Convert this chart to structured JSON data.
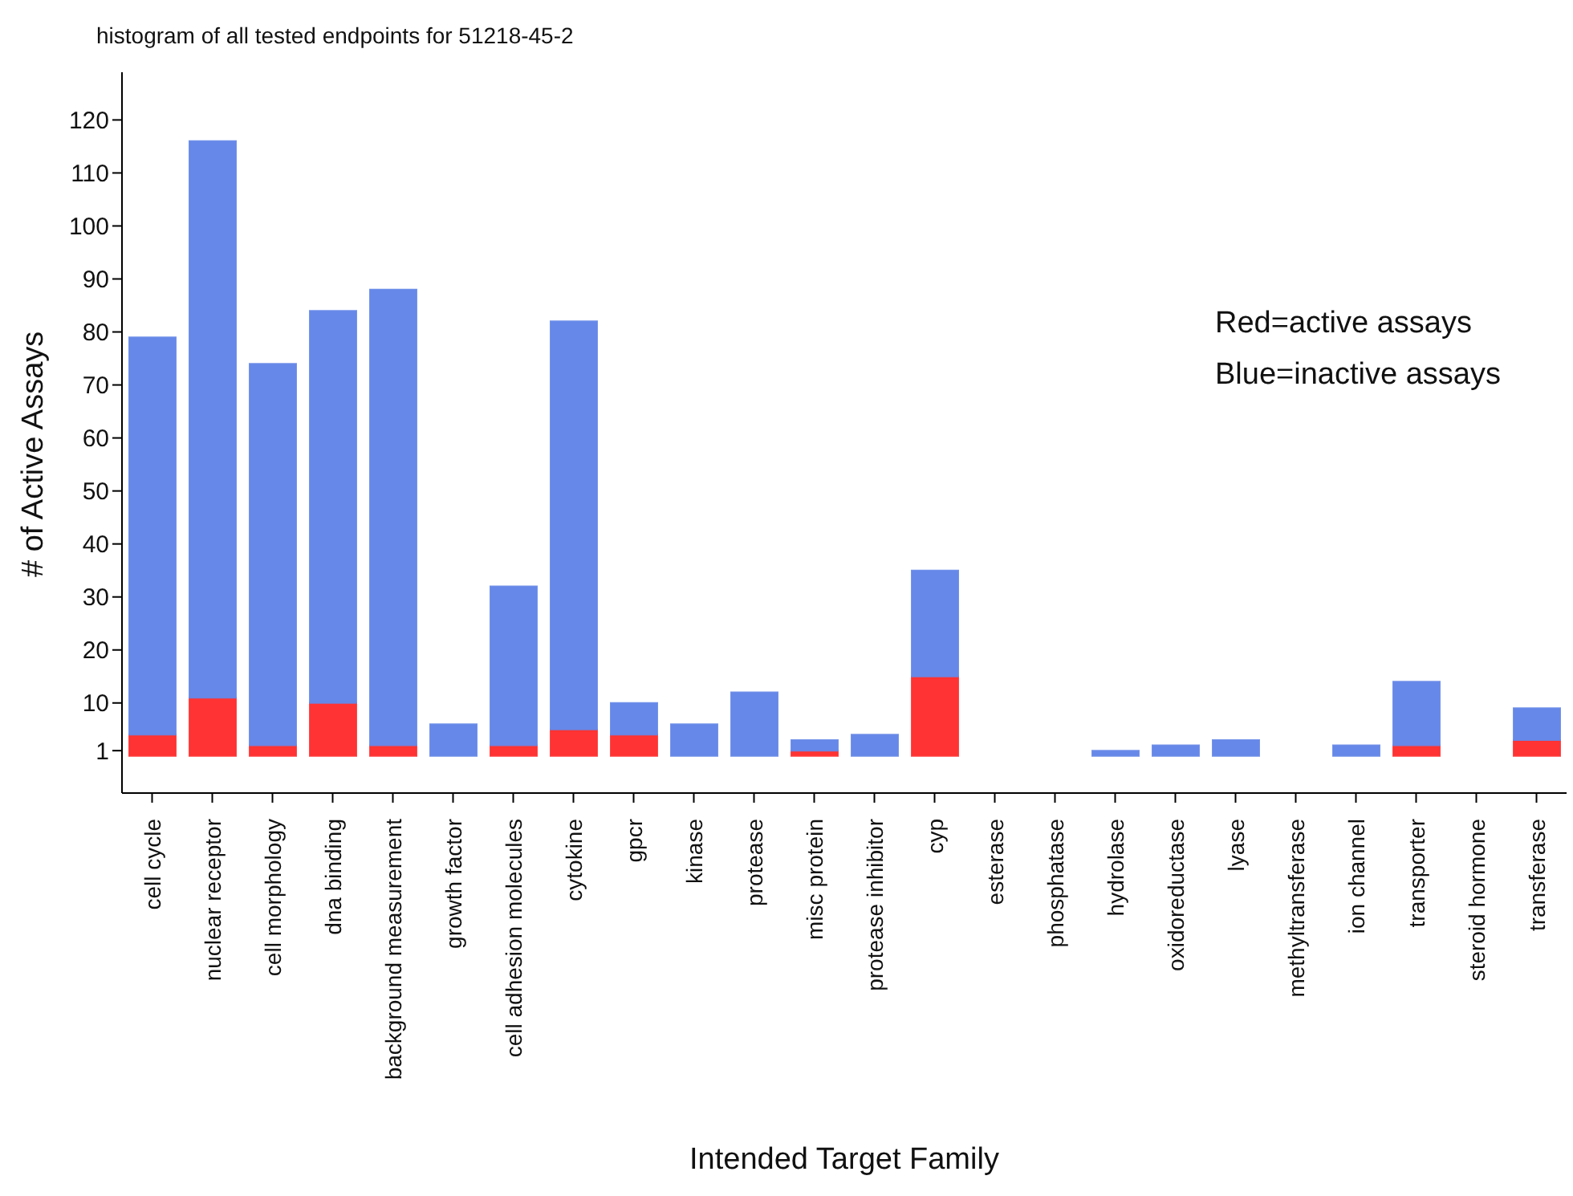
{
  "chart_data": {
    "type": "bar",
    "title": "histogram of all tested endpoints for 51218-45-2",
    "xlabel": "Intended Target Family",
    "ylabel": "# of Active Assays",
    "categories": [
      "cell cycle",
      "nuclear receptor",
      "cell morphology",
      "dna binding",
      "background measurement",
      "growth factor",
      "cell adhesion molecules",
      "cytokine",
      "gpcr",
      "kinase",
      "protease",
      "misc protein",
      "protease inhibitor",
      "cyp",
      "esterase",
      "phosphatase",
      "hydrolase",
      "oxidoreductase",
      "lyase",
      "methyltransferase",
      "ion channel",
      "transporter",
      "steroid hormone",
      "transferase"
    ],
    "stacked": true,
    "series": [
      {
        "color": "#ff3333",
        "values": [
          4,
          11,
          2,
          10,
          2,
          0,
          2,
          5,
          4,
          0,
          0,
          1,
          0,
          15,
          0,
          0,
          0,
          0,
          0,
          0,
          0,
          2,
          0,
          3
        ]
      },
      {
        "color": "#6688e8",
        "values": [
          75,
          105,
          72,
          74,
          86,
          6,
          30,
          77,
          6,
          6,
          12,
          2,
          4,
          20,
          0,
          0,
          1,
          2,
          3,
          0,
          2,
          12,
          0,
          6
        ]
      }
    ],
    "ylim": [
      -7,
      129
    ],
    "yticks": [
      1,
      10,
      20,
      30,
      40,
      50,
      60,
      70,
      80,
      90,
      100,
      110,
      120
    ],
    "annotations": [
      "Red=active assays",
      "Blue=inactive assays"
    ]
  }
}
